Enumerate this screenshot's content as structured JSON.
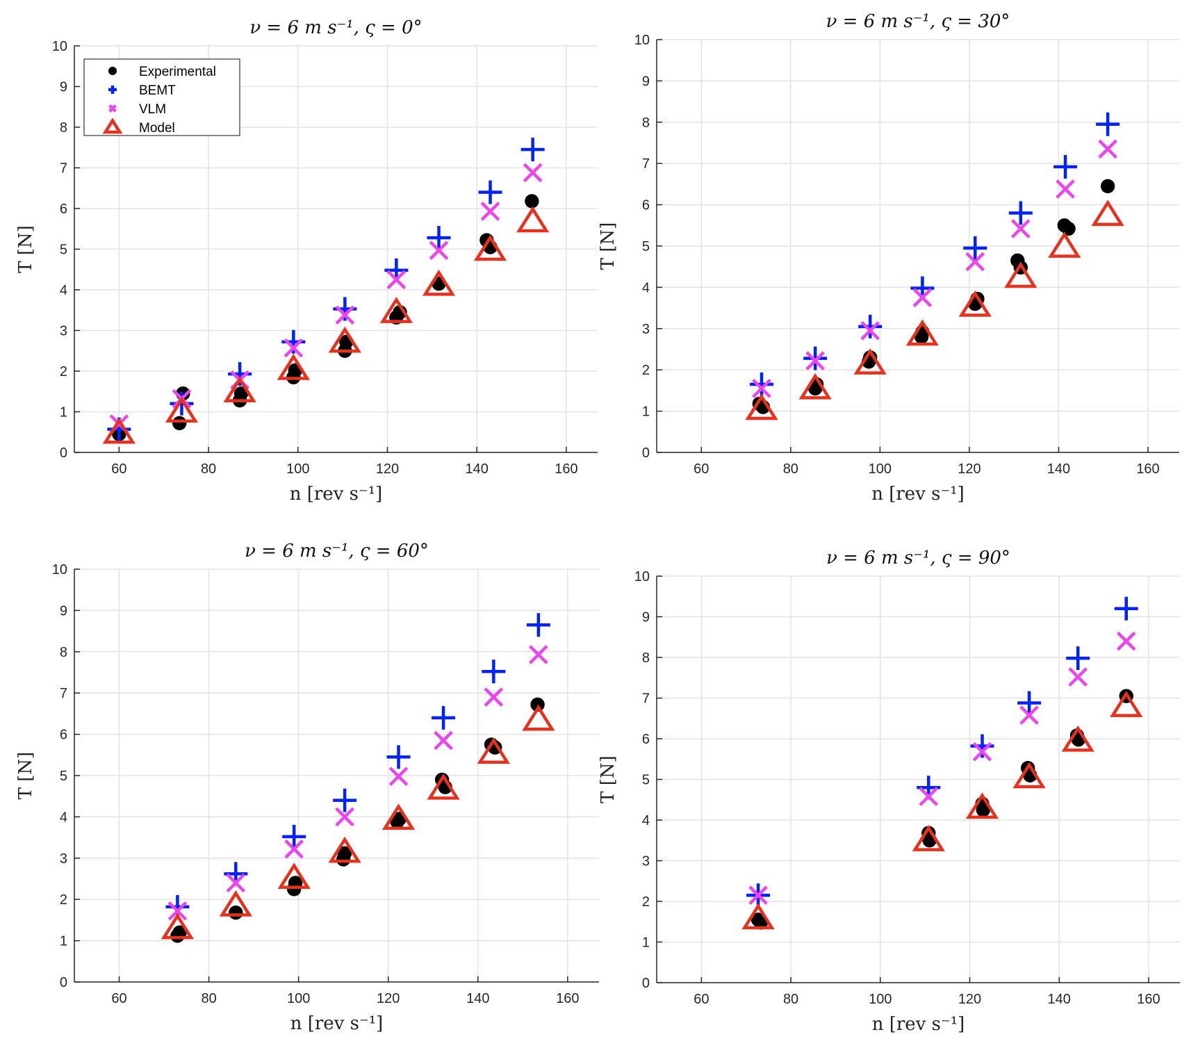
{
  "chart_data": [
    {
      "type": "scatter",
      "title": "ν = 6 m s⁻¹, ς = 0°",
      "xlabel": "n [rev s⁻¹]",
      "ylabel": "T [N]",
      "xlim": [
        50,
        167
      ],
      "ylim": [
        0,
        10
      ],
      "xticks": [
        60,
        80,
        100,
        120,
        140,
        160
      ],
      "yticks": [
        0,
        1,
        2,
        3,
        4,
        5,
        6,
        7,
        8,
        9,
        10
      ],
      "grid": true,
      "legend": {
        "position": "top-left",
        "entries": [
          "Experimental",
          "BEMT",
          "VLM",
          "Model"
        ]
      },
      "series": [
        {
          "name": "Experimental",
          "marker": "circle",
          "points": [
            [
              60,
              0.45
            ],
            [
              73.5,
              0.72
            ],
            [
              74.3,
              1.45
            ],
            [
              87,
              1.28
            ],
            [
              87.3,
              1.45
            ],
            [
              99,
              1.85
            ],
            [
              99.4,
              2.02
            ],
            [
              110.5,
              2.5
            ],
            [
              110.8,
              2.72
            ],
            [
              122,
              3.32
            ],
            [
              122.8,
              3.45
            ],
            [
              131.5,
              4.15
            ],
            [
              142.2,
              5.22
            ],
            [
              143,
              5.05
            ],
            [
              152.3,
              6.18
            ]
          ]
        },
        {
          "name": "BEMT",
          "marker": "plus",
          "points": [
            [
              60,
              0.57
            ],
            [
              74,
              1.2
            ],
            [
              87,
              1.93
            ],
            [
              99,
              2.72
            ],
            [
              110.5,
              3.53
            ],
            [
              122,
              4.48
            ],
            [
              131.5,
              5.28
            ],
            [
              143,
              6.4
            ],
            [
              152.5,
              7.45
            ]
          ]
        },
        {
          "name": "VLM",
          "marker": "x",
          "points": [
            [
              60,
              0.7
            ],
            [
              74,
              1.32
            ],
            [
              87,
              1.78
            ],
            [
              99,
              2.57
            ],
            [
              110.5,
              3.38
            ],
            [
              122,
              4.25
            ],
            [
              131.5,
              4.97
            ],
            [
              143,
              5.93
            ],
            [
              152.5,
              6.88
            ]
          ]
        },
        {
          "name": "Model",
          "marker": "triangle",
          "points": [
            [
              60,
              0.48
            ],
            [
              74,
              1.0
            ],
            [
              87,
              1.5
            ],
            [
              99,
              2.05
            ],
            [
              110.5,
              2.72
            ],
            [
              122,
              3.45
            ],
            [
              131.5,
              4.12
            ],
            [
              143,
              4.98
            ],
            [
              152.5,
              5.68
            ]
          ]
        }
      ]
    },
    {
      "type": "scatter",
      "title": "ν = 6 m s⁻¹, ς = 30°",
      "xlabel": "n [rev s⁻¹]",
      "ylabel": "T [N]",
      "xlim": [
        50,
        167
      ],
      "ylim": [
        0,
        10
      ],
      "xticks": [
        60,
        80,
        100,
        120,
        140,
        160
      ],
      "yticks": [
        0,
        1,
        2,
        3,
        4,
        5,
        6,
        7,
        8,
        9,
        10
      ],
      "grid": true,
      "series": [
        {
          "name": "Experimental",
          "marker": "circle",
          "points": [
            [
              73,
              1.18
            ],
            [
              73.8,
              1.1
            ],
            [
              85.5,
              1.55
            ],
            [
              85.8,
              1.65
            ],
            [
              97.5,
              2.2
            ],
            [
              97.8,
              2.3
            ],
            [
              109.3,
              2.8
            ],
            [
              109.5,
              2.92
            ],
            [
              121.3,
              3.6
            ],
            [
              121.8,
              3.72
            ],
            [
              130.8,
              4.65
            ],
            [
              131.5,
              4.48
            ],
            [
              141.3,
              5.5
            ],
            [
              142.2,
              5.42
            ],
            [
              151,
              6.45
            ]
          ]
        },
        {
          "name": "BEMT",
          "marker": "plus",
          "points": [
            [
              73.5,
              1.65
            ],
            [
              85.5,
              2.28
            ],
            [
              97.8,
              3.05
            ],
            [
              109.5,
              3.98
            ],
            [
              121.3,
              4.95
            ],
            [
              131.5,
              5.8
            ],
            [
              141.5,
              6.92
            ],
            [
              151,
              7.95
            ]
          ]
        },
        {
          "name": "VLM",
          "marker": "x",
          "points": [
            [
              73.5,
              1.55
            ],
            [
              85.5,
              2.22
            ],
            [
              97.8,
              2.95
            ],
            [
              109.5,
              3.75
            ],
            [
              121.3,
              4.62
            ],
            [
              131.5,
              5.42
            ],
            [
              141.5,
              6.38
            ],
            [
              151,
              7.35
            ]
          ]
        },
        {
          "name": "Model",
          "marker": "triangle",
          "points": [
            [
              73.5,
              1.05
            ],
            [
              85.5,
              1.55
            ],
            [
              97.8,
              2.15
            ],
            [
              109.5,
              2.85
            ],
            [
              121.3,
              3.55
            ],
            [
              131.5,
              4.25
            ],
            [
              141.3,
              4.98
            ],
            [
              151,
              5.75
            ]
          ]
        }
      ]
    },
    {
      "type": "scatter",
      "title": "ν = 6 m s⁻¹, ς = 60°",
      "xlabel": "n [rev s⁻¹]",
      "ylabel": "T [N]",
      "xlim": [
        50,
        167
      ],
      "ylim": [
        0,
        10
      ],
      "xticks": [
        60,
        80,
        100,
        120,
        140,
        160
      ],
      "yticks": [
        0,
        1,
        2,
        3,
        4,
        5,
        6,
        7,
        8,
        9,
        10
      ],
      "grid": true,
      "series": [
        {
          "name": "Experimental",
          "marker": "circle",
          "points": [
            [
              73,
              1.12
            ],
            [
              73.5,
              1.2
            ],
            [
              86,
              1.68
            ],
            [
              99,
              2.25
            ],
            [
              99.3,
              2.4
            ],
            [
              110,
              2.97
            ],
            [
              110.3,
              3.12
            ],
            [
              122,
              3.88
            ],
            [
              122.5,
              3.95
            ],
            [
              132,
              4.9
            ],
            [
              132.7,
              4.72
            ],
            [
              143,
              5.75
            ],
            [
              143.8,
              5.68
            ],
            [
              153.3,
              6.72
            ]
          ]
        },
        {
          "name": "BEMT",
          "marker": "plus",
          "points": [
            [
              73,
              1.82
            ],
            [
              86,
              2.62
            ],
            [
              99,
              3.52
            ],
            [
              110.3,
              4.4
            ],
            [
              122.3,
              5.45
            ],
            [
              132.3,
              6.4
            ],
            [
              143.5,
              7.52
            ],
            [
              153.5,
              8.65
            ]
          ]
        },
        {
          "name": "VLM",
          "marker": "x",
          "points": [
            [
              73,
              1.72
            ],
            [
              86,
              2.4
            ],
            [
              99,
              3.22
            ],
            [
              110.3,
              4.0
            ],
            [
              122.3,
              4.98
            ],
            [
              132.3,
              5.85
            ],
            [
              143.5,
              6.9
            ],
            [
              153.5,
              7.93
            ]
          ]
        },
        {
          "name": "Model",
          "marker": "triangle",
          "points": [
            [
              73,
              1.3
            ],
            [
              86,
              1.85
            ],
            [
              99,
              2.52
            ],
            [
              110.3,
              3.15
            ],
            [
              122.3,
              3.95
            ],
            [
              132.3,
              4.68
            ],
            [
              143.5,
              5.55
            ],
            [
              153.5,
              6.35
            ]
          ]
        }
      ]
    },
    {
      "type": "scatter",
      "title": "ν = 6 m s⁻¹, ς = 90°",
      "xlabel": "n [rev s⁻¹]",
      "ylabel": "T [N]",
      "xlim": [
        50,
        167
      ],
      "ylim": [
        0,
        10
      ],
      "xticks": [
        60,
        80,
        100,
        120,
        140,
        160
      ],
      "yticks": [
        0,
        1,
        2,
        3,
        4,
        5,
        6,
        7,
        8,
        9,
        10
      ],
      "grid": true,
      "series": [
        {
          "name": "Experimental",
          "marker": "circle",
          "points": [
            [
              72.7,
              1.55
            ],
            [
              73.3,
              1.48
            ],
            [
              110.8,
              3.68
            ],
            [
              111,
              3.5
            ],
            [
              122.8,
              4.4
            ],
            [
              123,
              4.25
            ],
            [
              133,
              5.28
            ],
            [
              133.5,
              5.1
            ],
            [
              144,
              6.08
            ],
            [
              144.3,
              5.98
            ],
            [
              155,
              7.05
            ]
          ]
        },
        {
          "name": "BEMT",
          "marker": "plus",
          "points": [
            [
              72.7,
              2.15
            ],
            [
              110.8,
              4.8
            ],
            [
              122.8,
              5.82
            ],
            [
              133.3,
              6.88
            ],
            [
              144.2,
              7.98
            ],
            [
              155,
              9.2
            ]
          ]
        },
        {
          "name": "VLM",
          "marker": "x",
          "points": [
            [
              72.7,
              2.15
            ],
            [
              110.8,
              4.58
            ],
            [
              122.8,
              5.68
            ],
            [
              133.3,
              6.58
            ],
            [
              144.2,
              7.52
            ],
            [
              155,
              8.4
            ]
          ]
        },
        {
          "name": "Model",
          "marker": "triangle",
          "points": [
            [
              72.7,
              1.58
            ],
            [
              110.8,
              3.5
            ],
            [
              122.8,
              4.3
            ],
            [
              133.3,
              5.05
            ],
            [
              144.2,
              5.95
            ],
            [
              155,
              6.8
            ]
          ]
        }
      ]
    }
  ],
  "colors": {
    "Experimental": "#000000",
    "BEMT": "#0022ff",
    "VLM": "#ee44ee",
    "Model": "#e8301c",
    "grid": "#e3e3e3",
    "axis": "#262626"
  }
}
